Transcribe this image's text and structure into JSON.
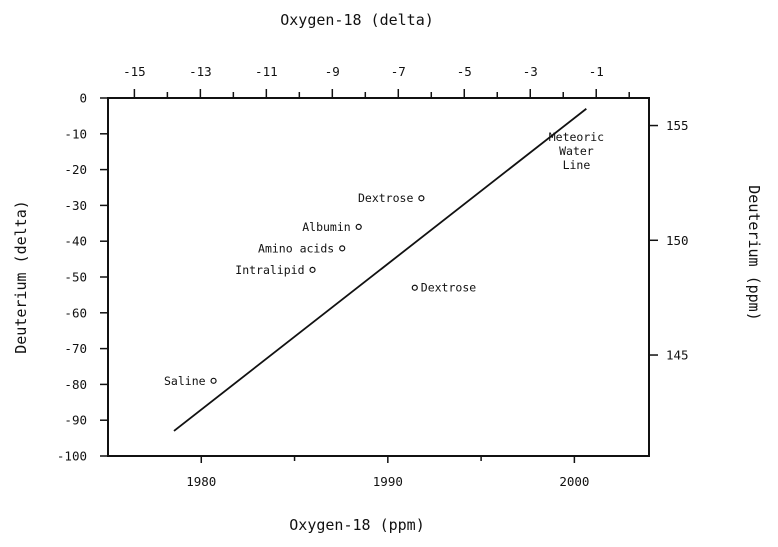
{
  "chart_data": {
    "type": "scatter",
    "title": "",
    "axes": {
      "x_bottom": {
        "label": "Oxygen-18  (ppm)",
        "range": [
          1975,
          2004
        ],
        "ticks": [
          1980,
          1990,
          2000
        ]
      },
      "x_top": {
        "label": "Oxygen-18  (delta)",
        "range": [
          -15.8,
          0.6
        ],
        "ticks": [
          -15,
          -13,
          -11,
          -9,
          -7,
          -5,
          -3,
          -1
        ],
        "tick_labels": [
          "-15",
          "-13",
          "-11",
          "-9",
          "-7",
          "-5",
          "-3",
          "-1"
        ]
      },
      "y_left": {
        "label": "Deuterium  (delta)",
        "range": [
          -100,
          0
        ],
        "ticks": [
          0,
          -10,
          -20,
          -30,
          -40,
          -50,
          -60,
          -70,
          -80,
          -90,
          -100
        ]
      },
      "y_right": {
        "label": "Deuterium  (ppm)",
        "range": [
          140.6,
          156.2
        ],
        "ticks": [
          145,
          150,
          155
        ]
      }
    },
    "grid": false,
    "line": {
      "name": "Meteoric Water Line",
      "label_lines": [
        "Meteoric",
        "Water",
        "Line"
      ],
      "x": [
        -13.8,
        -1.3
      ],
      "y": [
        -93,
        -3
      ]
    },
    "points": [
      {
        "label": "Saline",
        "x": -12.6,
        "y": -79
      },
      {
        "label": "Intralipid",
        "x": -9.6,
        "y": -48
      },
      {
        "label": "Amino acids",
        "x": -8.7,
        "y": -42
      },
      {
        "label": "Albumin",
        "x": -8.2,
        "y": -36
      },
      {
        "label": "Dextrose",
        "x": -6.3,
        "y": -28
      },
      {
        "label": "Dextrose",
        "x": -6.5,
        "y": -53
      }
    ]
  }
}
